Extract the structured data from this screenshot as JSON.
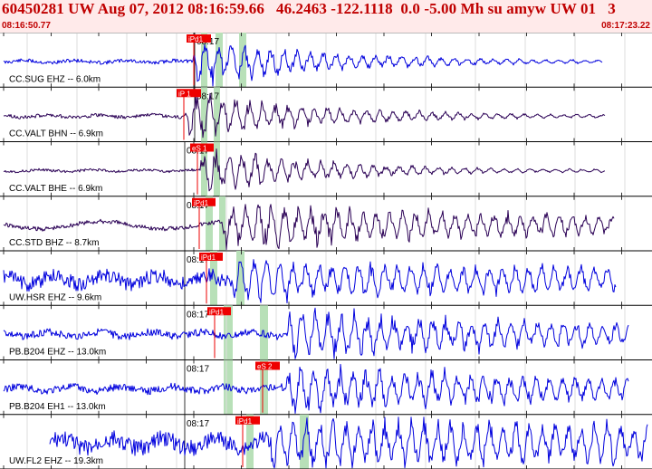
{
  "header": {
    "title": "60450281 UW Aug 07, 2012 08:16:59.66   46.2463 -122.1118  0.0 -5.00 Mh su amyw UW 01   3",
    "start_time": "08:16:50.77",
    "end_time": "08:17:23.22"
  },
  "colors": {
    "header_bg": "#ffeaea",
    "header_text": "#c00000",
    "trace_blue": "#0000dd",
    "trace_purple": "#2a0055",
    "pick_flag": "#ee0000",
    "pick_window": "#b8e0b8"
  },
  "traces": [
    {
      "label": "CC.SUG EHZ -- 6.0km",
      "tick": "08:17",
      "pick": "iPd1",
      "color": "blue",
      "seed": 11
    },
    {
      "label": "CC.VALT BHN -- 6.9km",
      "tick": "08:17",
      "pick": "iP 1",
      "color": "purple",
      "seed": 23
    },
    {
      "label": "CC.VALT BHE -- 6.9km",
      "tick": "08:17",
      "pick": "eS 1",
      "color": "purple",
      "seed": 37
    },
    {
      "label": "CC.STD BHZ -- 8.7km",
      "tick": "08:17",
      "pick": "iPd1",
      "color": "purple",
      "seed": 41
    },
    {
      "label": "UW.HSR EHZ -- 9.6km",
      "tick": "08:17",
      "pick": "iPd1",
      "color": "blue",
      "seed": 53
    },
    {
      "label": "PB.B204 EHZ -- 13.0km",
      "tick": "08:17",
      "pick": "iPd1",
      "color": "blue",
      "seed": 67
    },
    {
      "label": "PB.B204 EH1 -- 13.0km",
      "tick": "08:17",
      "pick": "eS 2",
      "color": "blue",
      "seed": 79
    },
    {
      "label": "UW.FL2 EHZ -- 19.3km",
      "tick": "08:17",
      "pick": "iPd1",
      "color": "blue",
      "seed": 83
    }
  ]
}
